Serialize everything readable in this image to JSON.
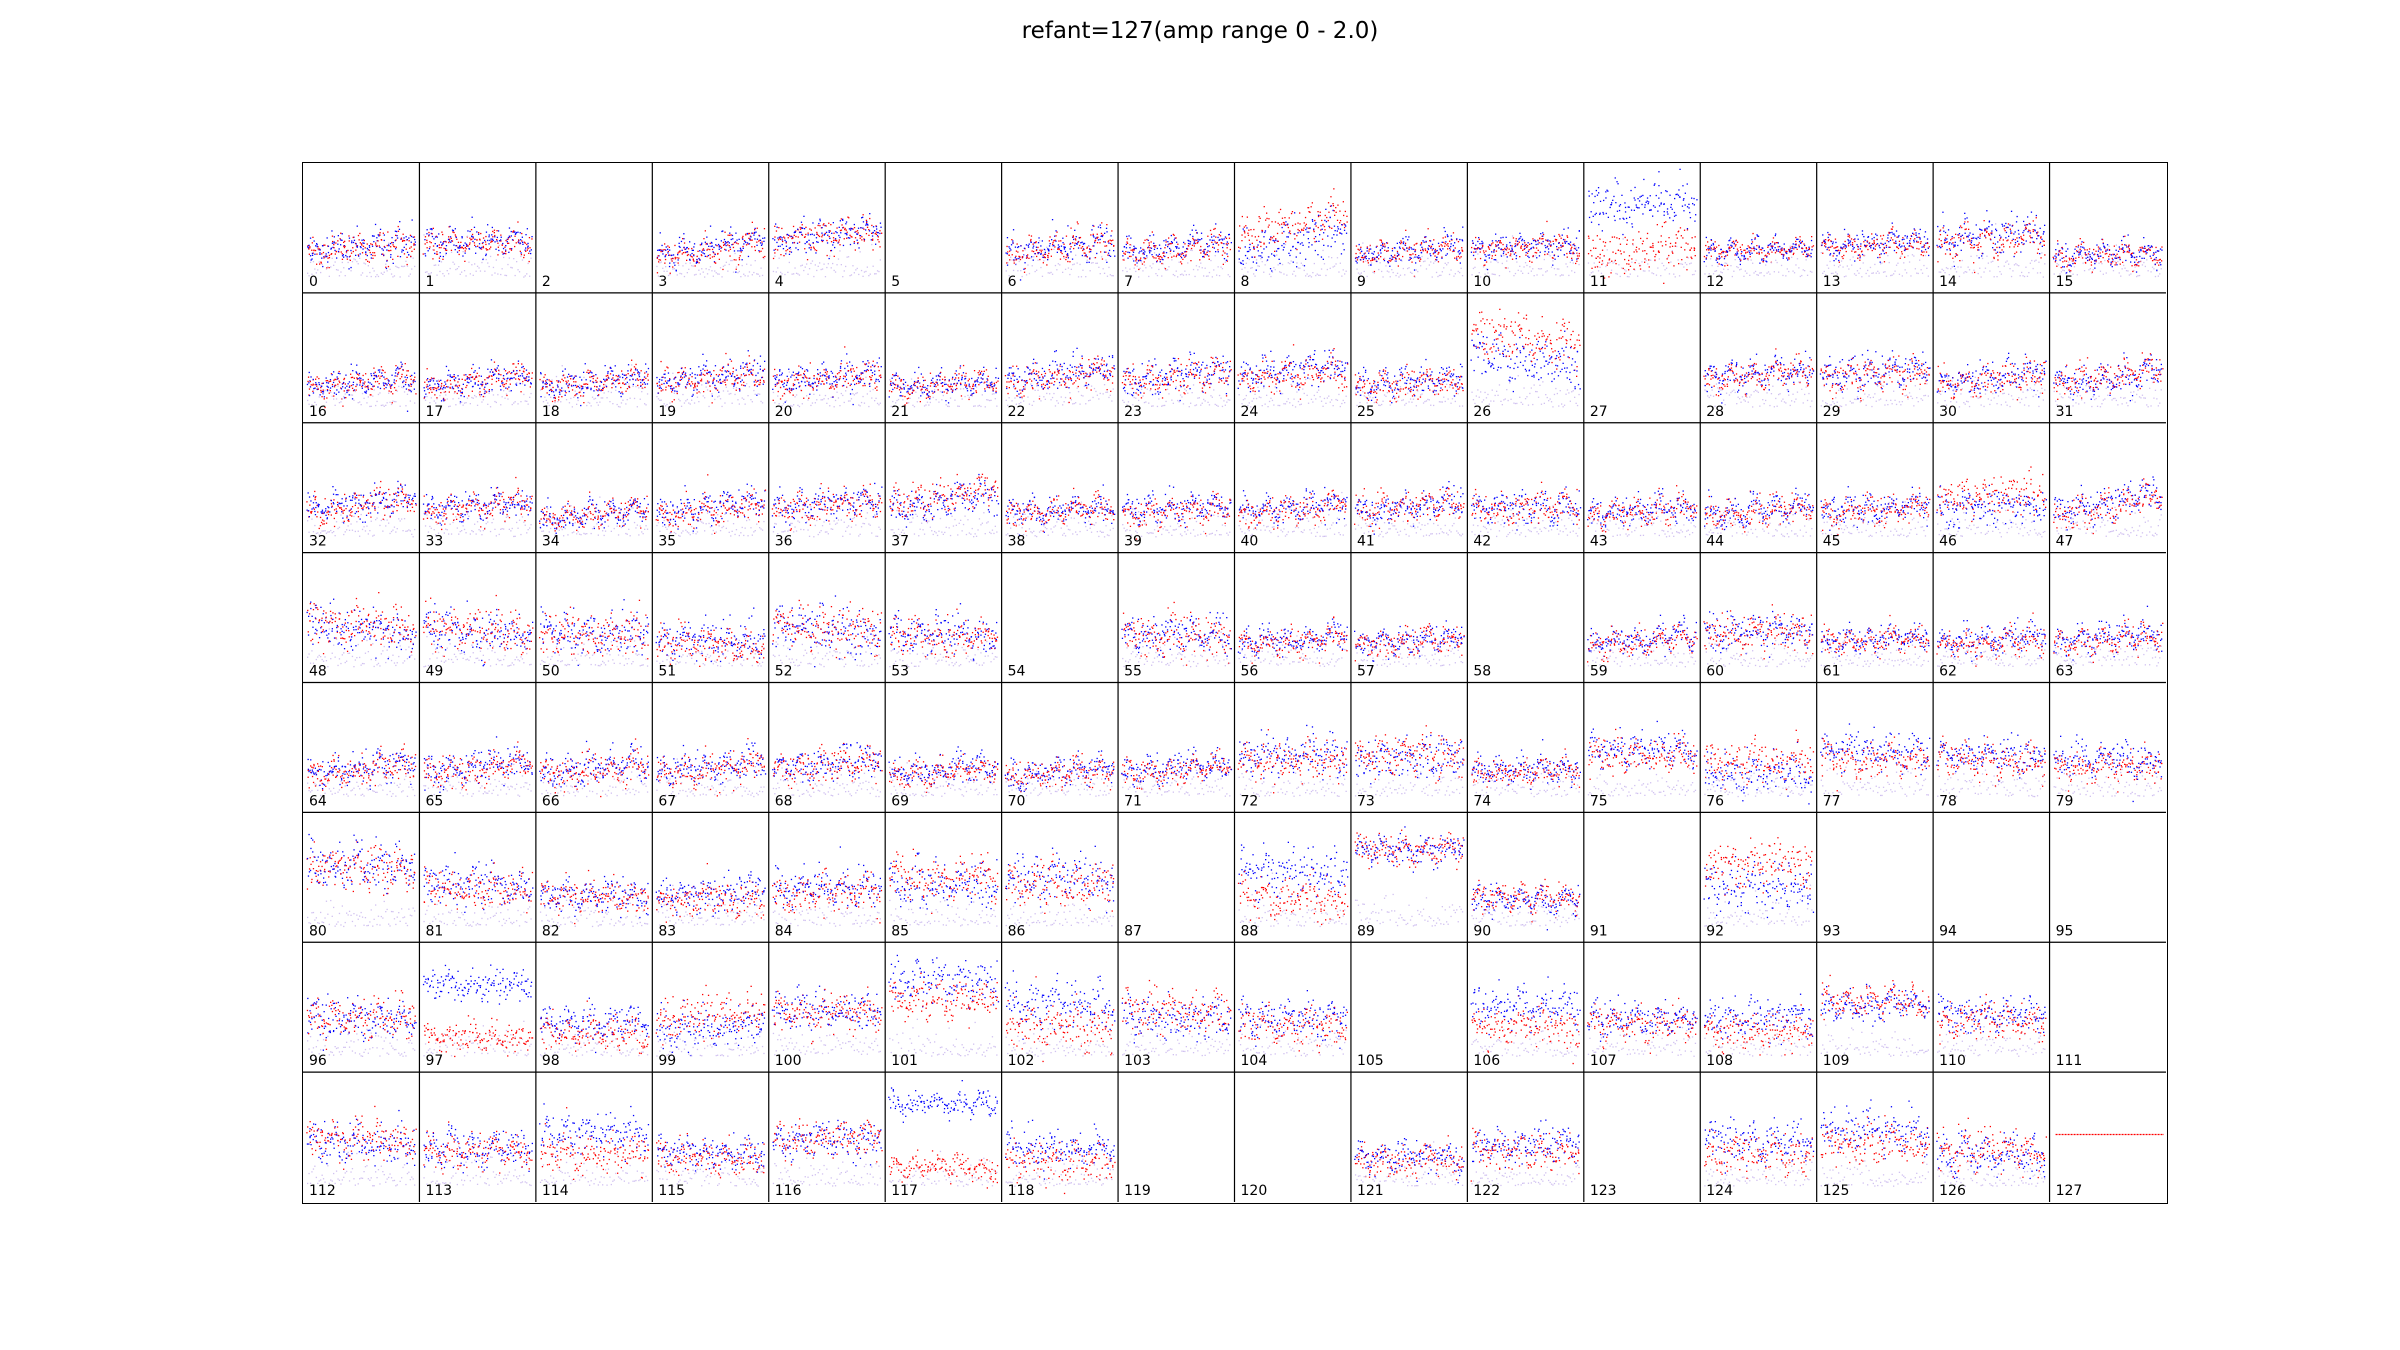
{
  "title": "refant=127(amp range 0 - 2.0)",
  "chart_data": {
    "type": "scatter",
    "title": "refant=127(amp range 0 - 2.0)",
    "layout": "small-multiples grid",
    "rows": 8,
    "cols": 16,
    "panel_labels": [
      "0",
      "1",
      "2",
      "3",
      "4",
      "5",
      "6",
      "7",
      "8",
      "9",
      "10",
      "11",
      "12",
      "13",
      "14",
      "15",
      "16",
      "17",
      "18",
      "19",
      "20",
      "21",
      "22",
      "23",
      "24",
      "25",
      "26",
      "27",
      "28",
      "29",
      "30",
      "31",
      "32",
      "33",
      "34",
      "35",
      "36",
      "37",
      "38",
      "39",
      "40",
      "41",
      "42",
      "43",
      "44",
      "45",
      "46",
      "47",
      "48",
      "49",
      "50",
      "51",
      "52",
      "53",
      "54",
      "55",
      "56",
      "57",
      "58",
      "59",
      "60",
      "61",
      "62",
      "63",
      "64",
      "65",
      "66",
      "67",
      "68",
      "69",
      "70",
      "71",
      "72",
      "73",
      "74",
      "75",
      "76",
      "77",
      "78",
      "79",
      "80",
      "81",
      "82",
      "83",
      "84",
      "85",
      "86",
      "87",
      "88",
      "89",
      "90",
      "91",
      "92",
      "93",
      "94",
      "95",
      "96",
      "97",
      "98",
      "99",
      "100",
      "101",
      "102",
      "103",
      "104",
      "105",
      "106",
      "107",
      "108",
      "109",
      "110",
      "111",
      "112",
      "113",
      "114",
      "115",
      "116",
      "117",
      "118",
      "119",
      "120",
      "121",
      "122",
      "123",
      "124",
      "125",
      "126",
      "127"
    ],
    "ylim": [
      0,
      2.0
    ],
    "series_colors": {
      "pol_a": "#0000ff",
      "pol_b": "#ff0000",
      "weak": "#ccbbee"
    },
    "empty_panels": [
      2,
      5,
      27,
      54,
      58,
      87,
      91,
      93,
      94,
      95,
      105,
      111,
      119,
      120,
      123
    ],
    "flat_panels": [
      127
    ],
    "panels": [
      {
        "ant": 0,
        "blue": 0.42,
        "red": 0.4,
        "noise": 0.22,
        "slope": 0.1
      },
      {
        "ant": 1,
        "blue": 0.46,
        "red": 0.45,
        "noise": 0.18,
        "slope": 0.02
      },
      {
        "ant": 3,
        "blue": 0.4,
        "red": 0.38,
        "noise": 0.2,
        "slope": 0.18
      },
      {
        "ant": 4,
        "blue": 0.52,
        "red": 0.5,
        "noise": 0.22,
        "slope": 0.12
      },
      {
        "ant": 6,
        "blue": 0.42,
        "red": 0.4,
        "noise": 0.2,
        "slope": 0.14
      },
      {
        "ant": 7,
        "blue": 0.4,
        "red": 0.38,
        "noise": 0.18,
        "slope": 0.12
      },
      {
        "ant": 8,
        "blue": 0.45,
        "red": 0.62,
        "noise": 0.3,
        "slope": 0.25
      },
      {
        "ant": 9,
        "blue": 0.38,
        "red": 0.36,
        "noise": 0.18,
        "slope": 0.1
      },
      {
        "ant": 10,
        "blue": 0.42,
        "red": 0.4,
        "noise": 0.18,
        "slope": 0.06
      },
      {
        "ant": 11,
        "blue": 0.82,
        "red": 0.38,
        "noise": 0.32,
        "slope": 0.1
      },
      {
        "ant": 12,
        "blue": 0.38,
        "red": 0.38,
        "noise": 0.14,
        "slope": 0.05
      },
      {
        "ant": 13,
        "blue": 0.44,
        "red": 0.42,
        "noise": 0.16,
        "slope": 0.06
      },
      {
        "ant": 14,
        "blue": 0.52,
        "red": 0.46,
        "noise": 0.22,
        "slope": 0.08
      },
      {
        "ant": 15,
        "blue": 0.34,
        "red": 0.33,
        "noise": 0.16,
        "slope": 0.06
      },
      {
        "ant": 16,
        "blue": 0.36,
        "red": 0.35,
        "noise": 0.18,
        "slope": 0.12
      },
      {
        "ant": 17,
        "blue": 0.37,
        "red": 0.36,
        "noise": 0.18,
        "slope": 0.12
      },
      {
        "ant": 18,
        "blue": 0.36,
        "red": 0.35,
        "noise": 0.18,
        "slope": 0.12
      },
      {
        "ant": 19,
        "blue": 0.4,
        "red": 0.38,
        "noise": 0.2,
        "slope": 0.12
      },
      {
        "ant": 20,
        "blue": 0.4,
        "red": 0.38,
        "noise": 0.2,
        "slope": 0.12
      },
      {
        "ant": 21,
        "blue": 0.34,
        "red": 0.34,
        "noise": 0.16,
        "slope": 0.08
      },
      {
        "ant": 22,
        "blue": 0.44,
        "red": 0.4,
        "noise": 0.22,
        "slope": 0.14
      },
      {
        "ant": 23,
        "blue": 0.42,
        "red": 0.4,
        "noise": 0.22,
        "slope": 0.12
      },
      {
        "ant": 24,
        "blue": 0.46,
        "red": 0.42,
        "noise": 0.2,
        "slope": 0.1
      },
      {
        "ant": 25,
        "blue": 0.36,
        "red": 0.34,
        "noise": 0.18,
        "slope": 0.1
      },
      {
        "ant": 26,
        "blue": 0.58,
        "red": 0.78,
        "noise": 0.32,
        "slope": -0.1
      },
      {
        "ant": 28,
        "blue": 0.44,
        "red": 0.42,
        "noise": 0.2,
        "slope": 0.08
      },
      {
        "ant": 29,
        "blue": 0.46,
        "red": 0.44,
        "noise": 0.22,
        "slope": 0.08
      },
      {
        "ant": 30,
        "blue": 0.4,
        "red": 0.38,
        "noise": 0.2,
        "slope": 0.12
      },
      {
        "ant": 31,
        "blue": 0.4,
        "red": 0.4,
        "noise": 0.2,
        "slope": 0.14
      },
      {
        "ant": 32,
        "blue": 0.44,
        "red": 0.42,
        "noise": 0.2,
        "slope": 0.14
      },
      {
        "ant": 33,
        "blue": 0.42,
        "red": 0.4,
        "noise": 0.18,
        "slope": 0.1
      },
      {
        "ant": 34,
        "blue": 0.34,
        "red": 0.34,
        "noise": 0.16,
        "slope": 0.1
      },
      {
        "ant": 35,
        "blue": 0.4,
        "red": 0.38,
        "noise": 0.2,
        "slope": 0.14
      },
      {
        "ant": 36,
        "blue": 0.44,
        "red": 0.42,
        "noise": 0.2,
        "slope": 0.12
      },
      {
        "ant": 37,
        "blue": 0.46,
        "red": 0.52,
        "noise": 0.22,
        "slope": 0.14
      },
      {
        "ant": 38,
        "blue": 0.38,
        "red": 0.36,
        "noise": 0.18,
        "slope": 0.08
      },
      {
        "ant": 39,
        "blue": 0.4,
        "red": 0.38,
        "noise": 0.18,
        "slope": 0.08
      },
      {
        "ant": 40,
        "blue": 0.4,
        "red": 0.38,
        "noise": 0.18,
        "slope": 0.08
      },
      {
        "ant": 41,
        "blue": 0.42,
        "red": 0.4,
        "noise": 0.2,
        "slope": 0.1
      },
      {
        "ant": 42,
        "blue": 0.4,
        "red": 0.4,
        "noise": 0.22,
        "slope": 0.06
      },
      {
        "ant": 43,
        "blue": 0.38,
        "red": 0.36,
        "noise": 0.18,
        "slope": 0.08
      },
      {
        "ant": 44,
        "blue": 0.38,
        "red": 0.36,
        "noise": 0.18,
        "slope": 0.08
      },
      {
        "ant": 45,
        "blue": 0.4,
        "red": 0.38,
        "noise": 0.2,
        "slope": 0.08
      },
      {
        "ant": 46,
        "blue": 0.42,
        "red": 0.52,
        "noise": 0.26,
        "slope": 0.06
      },
      {
        "ant": 47,
        "blue": 0.44,
        "red": 0.42,
        "noise": 0.22,
        "slope": 0.2
      },
      {
        "ant": 48,
        "blue": 0.48,
        "red": 0.5,
        "noise": 0.3,
        "slope": -0.04
      },
      {
        "ant": 49,
        "blue": 0.46,
        "red": 0.48,
        "noise": 0.3,
        "slope": -0.04
      },
      {
        "ant": 50,
        "blue": 0.44,
        "red": 0.44,
        "noise": 0.28,
        "slope": -0.02
      },
      {
        "ant": 51,
        "blue": 0.38,
        "red": 0.34,
        "noise": 0.26,
        "slope": -0.04
      },
      {
        "ant": 52,
        "blue": 0.48,
        "red": 0.5,
        "noise": 0.32,
        "slope": -0.06
      },
      {
        "ant": 53,
        "blue": 0.44,
        "red": 0.42,
        "noise": 0.26,
        "slope": -0.04
      },
      {
        "ant": 55,
        "blue": 0.44,
        "red": 0.42,
        "noise": 0.26,
        "slope": -0.02
      },
      {
        "ant": 56,
        "blue": 0.38,
        "red": 0.36,
        "noise": 0.18,
        "slope": 0.08
      },
      {
        "ant": 57,
        "blue": 0.38,
        "red": 0.36,
        "noise": 0.18,
        "slope": 0.08
      },
      {
        "ant": 59,
        "blue": 0.38,
        "red": 0.36,
        "noise": 0.18,
        "slope": 0.12
      },
      {
        "ant": 60,
        "blue": 0.46,
        "red": 0.44,
        "noise": 0.24,
        "slope": 0.04
      },
      {
        "ant": 61,
        "blue": 0.4,
        "red": 0.38,
        "noise": 0.18,
        "slope": 0.06
      },
      {
        "ant": 62,
        "blue": 0.38,
        "red": 0.36,
        "noise": 0.18,
        "slope": 0.06
      },
      {
        "ant": 63,
        "blue": 0.4,
        "red": 0.38,
        "noise": 0.2,
        "slope": 0.06
      },
      {
        "ant": 64,
        "blue": 0.4,
        "red": 0.38,
        "noise": 0.2,
        "slope": 0.12
      },
      {
        "ant": 65,
        "blue": 0.42,
        "red": 0.4,
        "noise": 0.22,
        "slope": 0.12
      },
      {
        "ant": 66,
        "blue": 0.4,
        "red": 0.38,
        "noise": 0.22,
        "slope": 0.12
      },
      {
        "ant": 67,
        "blue": 0.4,
        "red": 0.38,
        "noise": 0.22,
        "slope": 0.12
      },
      {
        "ant": 68,
        "blue": 0.44,
        "red": 0.42,
        "noise": 0.22,
        "slope": 0.1
      },
      {
        "ant": 69,
        "blue": 0.38,
        "red": 0.36,
        "noise": 0.18,
        "slope": 0.1
      },
      {
        "ant": 70,
        "blue": 0.36,
        "red": 0.34,
        "noise": 0.18,
        "slope": 0.1
      },
      {
        "ant": 71,
        "blue": 0.4,
        "red": 0.38,
        "noise": 0.18,
        "slope": 0.1
      },
      {
        "ant": 72,
        "blue": 0.52,
        "red": 0.46,
        "noise": 0.28,
        "slope": 0.0
      },
      {
        "ant": 73,
        "blue": 0.5,
        "red": 0.52,
        "noise": 0.28,
        "slope": 0.0
      },
      {
        "ant": 74,
        "blue": 0.38,
        "red": 0.36,
        "noise": 0.18,
        "slope": 0.02
      },
      {
        "ant": 75,
        "blue": 0.58,
        "red": 0.52,
        "noise": 0.24,
        "slope": 0.0
      },
      {
        "ant": 76,
        "blue": 0.34,
        "red": 0.46,
        "noise": 0.26,
        "slope": 0.0
      },
      {
        "ant": 77,
        "blue": 0.56,
        "red": 0.48,
        "noise": 0.24,
        "slope": 0.0
      },
      {
        "ant": 78,
        "blue": 0.52,
        "red": 0.46,
        "noise": 0.24,
        "slope": 0.0
      },
      {
        "ant": 79,
        "blue": 0.48,
        "red": 0.42,
        "noise": 0.22,
        "slope": 0.0
      },
      {
        "ant": 80,
        "blue": 0.7,
        "red": 0.68,
        "noise": 0.3,
        "slope": -0.04
      },
      {
        "ant": 81,
        "blue": 0.52,
        "red": 0.48,
        "noise": 0.28,
        "slope": -0.02
      },
      {
        "ant": 82,
        "blue": 0.42,
        "red": 0.4,
        "noise": 0.22,
        "slope": 0.0
      },
      {
        "ant": 83,
        "blue": 0.44,
        "red": 0.38,
        "noise": 0.24,
        "slope": 0.06
      },
      {
        "ant": 84,
        "blue": 0.5,
        "red": 0.44,
        "noise": 0.26,
        "slope": 0.04
      },
      {
        "ant": 85,
        "blue": 0.52,
        "red": 0.58,
        "noise": 0.32,
        "slope": 0.0
      },
      {
        "ant": 86,
        "blue": 0.58,
        "red": 0.52,
        "noise": 0.3,
        "slope": 0.0
      },
      {
        "ant": 88,
        "blue": 0.64,
        "red": 0.38,
        "noise": 0.28,
        "slope": 0.0
      },
      {
        "ant": 89,
        "blue": 0.86,
        "red": 0.86,
        "noise": 0.2,
        "slope": 0.04
      },
      {
        "ant": 90,
        "blue": 0.38,
        "red": 0.4,
        "noise": 0.18,
        "slope": 0.0
      },
      {
        "ant": 92,
        "blue": 0.5,
        "red": 0.7,
        "noise": 0.34,
        "slope": 0.0
      },
      {
        "ant": 96,
        "blue": 0.48,
        "red": 0.48,
        "noise": 0.28,
        "slope": -0.02
      },
      {
        "ant": 97,
        "blue": 0.8,
        "red": 0.3,
        "noise": 0.2,
        "slope": 0.0
      },
      {
        "ant": 98,
        "blue": 0.44,
        "red": 0.34,
        "noise": 0.22,
        "slope": 0.0
      },
      {
        "ant": 99,
        "blue": 0.4,
        "red": 0.52,
        "noise": 0.28,
        "slope": 0.08
      },
      {
        "ant": 100,
        "blue": 0.56,
        "red": 0.54,
        "noise": 0.26,
        "slope": 0.0
      },
      {
        "ant": 101,
        "blue": 0.84,
        "red": 0.66,
        "noise": 0.26,
        "slope": 0.0
      },
      {
        "ant": 102,
        "blue": 0.6,
        "red": 0.4,
        "noise": 0.3,
        "slope": 0.0
      },
      {
        "ant": 103,
        "blue": 0.48,
        "red": 0.56,
        "noise": 0.28,
        "slope": 0.0
      },
      {
        "ant": 104,
        "blue": 0.5,
        "red": 0.42,
        "noise": 0.26,
        "slope": 0.0
      },
      {
        "ant": 106,
        "blue": 0.6,
        "red": 0.4,
        "noise": 0.26,
        "slope": 0.0
      },
      {
        "ant": 107,
        "blue": 0.48,
        "red": 0.44,
        "noise": 0.22,
        "slope": 0.0
      },
      {
        "ant": 108,
        "blue": 0.48,
        "red": 0.36,
        "noise": 0.24,
        "slope": 0.0
      },
      {
        "ant": 109,
        "blue": 0.62,
        "red": 0.64,
        "noise": 0.2,
        "slope": 0.0
      },
      {
        "ant": 110,
        "blue": 0.52,
        "red": 0.46,
        "noise": 0.24,
        "slope": 0.0
      },
      {
        "ant": 112,
        "blue": 0.54,
        "red": 0.56,
        "noise": 0.26,
        "slope": 0.0
      },
      {
        "ant": 113,
        "blue": 0.48,
        "red": 0.46,
        "noise": 0.24,
        "slope": 0.0
      },
      {
        "ant": 114,
        "blue": 0.62,
        "red": 0.44,
        "noise": 0.26,
        "slope": 0.0
      },
      {
        "ant": 115,
        "blue": 0.44,
        "red": 0.4,
        "noise": 0.22,
        "slope": 0.0
      },
      {
        "ant": 116,
        "blue": 0.56,
        "red": 0.58,
        "noise": 0.24,
        "slope": 0.0
      },
      {
        "ant": 117,
        "blue": 0.92,
        "red": 0.3,
        "noise": 0.16,
        "slope": 0.0
      },
      {
        "ant": 118,
        "blue": 0.48,
        "red": 0.38,
        "noise": 0.26,
        "slope": 0.0
      },
      {
        "ant": 121,
        "blue": 0.4,
        "red": 0.36,
        "noise": 0.2,
        "slope": 0.0
      },
      {
        "ant": 122,
        "blue": 0.52,
        "red": 0.44,
        "noise": 0.26,
        "slope": 0.0
      },
      {
        "ant": 124,
        "blue": 0.56,
        "red": 0.44,
        "noise": 0.28,
        "slope": 0.0
      },
      {
        "ant": 125,
        "blue": 0.66,
        "red": 0.52,
        "noise": 0.26,
        "slope": 0.0
      },
      {
        "ant": 126,
        "blue": 0.42,
        "red": 0.46,
        "noise": 0.26,
        "slope": -0.02
      },
      {
        "ant": 127,
        "blue": 0.52,
        "red": 0.52,
        "noise": 0.0,
        "slope": 0.0
      }
    ]
  }
}
